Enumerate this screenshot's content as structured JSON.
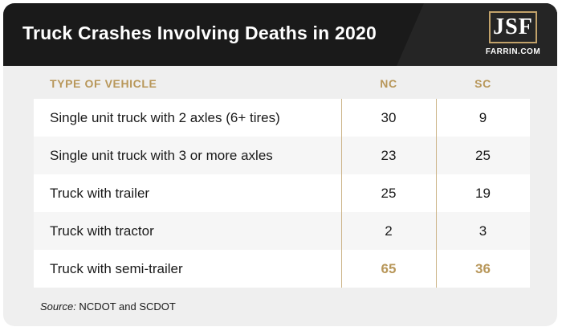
{
  "header": {
    "title": "Truck Crashes Involving Deaths in 2020",
    "logo_letters": "JSF",
    "logo_subtext": "FARRIN.COM"
  },
  "columns": {
    "type": "TYPE OF VEHICLE",
    "nc": "NC",
    "sc": "SC"
  },
  "rows": [
    {
      "type": "Single unit truck with 2 axles (6+ tires)",
      "nc": "30",
      "sc": "9"
    },
    {
      "type": "Single unit truck with 3 or more axles",
      "nc": "23",
      "sc": "25"
    },
    {
      "type": "Truck with trailer",
      "nc": "25",
      "sc": "19"
    },
    {
      "type": "Truck with tractor",
      "nc": "2",
      "sc": "3"
    },
    {
      "type": "Truck with semi-trailer",
      "nc": "65",
      "sc": "36"
    }
  ],
  "source": {
    "label": "Source:",
    "text": " NCDOT and SCDOT"
  },
  "colors": {
    "header_bg": "#1a1a1a",
    "accent_gold": "#b8975a",
    "card_bg": "#efefef"
  }
}
